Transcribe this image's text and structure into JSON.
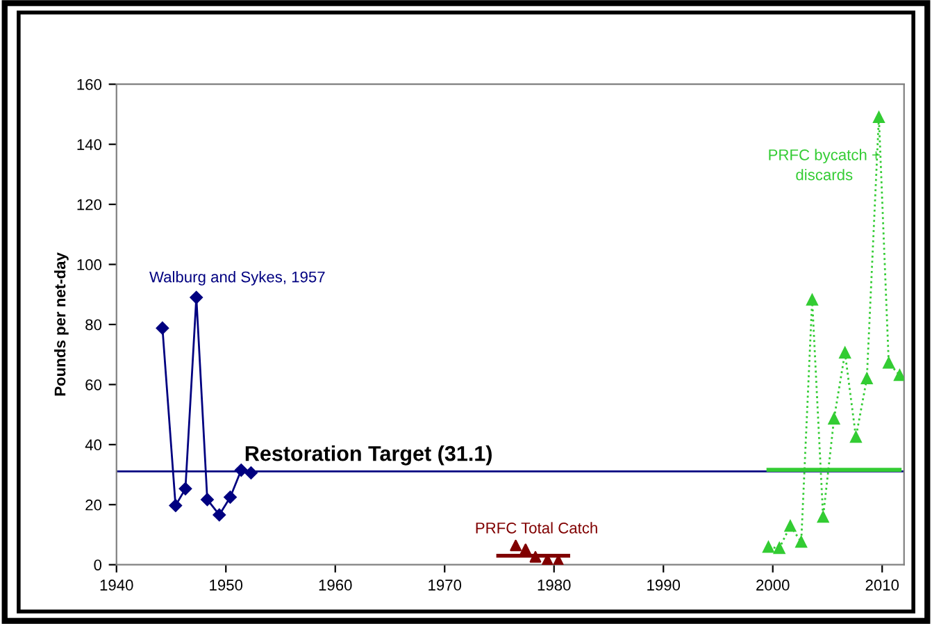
{
  "chart_data": {
    "type": "line",
    "ylabel": "Pounds per net-day",
    "xlim": [
      1940,
      2012
    ],
    "xticks": [
      1940,
      1950,
      1960,
      1970,
      1980,
      1990,
      2000,
      2010
    ],
    "ylim": [
      0,
      160
    ],
    "yticks": [
      0,
      20,
      40,
      60,
      80,
      100,
      120,
      140,
      160
    ],
    "grid": false,
    "legend": false,
    "series": [
      {
        "name": "Walburg and Sykes, 1957",
        "color": "#000080",
        "marker": "diamond",
        "line_style": "solid",
        "x": [
          1944.2,
          1945.4,
          1946.3,
          1947.3,
          1948.3,
          1949.4,
          1950.4,
          1951.4,
          1952.3
        ],
        "values": [
          78.8,
          19.7,
          25.3,
          89,
          21.7,
          16.6,
          22.5,
          31.5,
          30.6
        ]
      },
      {
        "name": "PRFC Total Catch",
        "type": "scatter",
        "color": "#800000",
        "marker": "triangle",
        "x": [
          1976.5,
          1977.4,
          1978.3,
          1979.4,
          1980.4
        ],
        "values": [
          6.4,
          5.1,
          2.6,
          1.6,
          1.3
        ]
      },
      {
        "color": "#800000",
        "marker": "none",
        "line_style": "solid",
        "x": [
          1974.9,
          1981.3
        ],
        "values": [
          3.0,
          3.0
        ]
      },
      {
        "name": "PRFC bycatch +\ndiscards",
        "color": "#33cc33",
        "marker": "triangle",
        "line_style": "dotted",
        "x": [
          1999.6,
          2000.6,
          2001.6,
          2002.6,
          2003.6,
          2004.6,
          2005.6,
          2006.6,
          2007.6,
          2008.6,
          2009.7,
          2010.6,
          2011.6
        ],
        "values": [
          5.9,
          5.5,
          12.9,
          7.6,
          88.2,
          15.9,
          48.6,
          70.6,
          42.5,
          62,
          149,
          67.2,
          63.1
        ]
      },
      {
        "color": "#33cc33",
        "marker": "none",
        "line_style": "solid",
        "x": [
          1999.6,
          2011.6
        ],
        "values": [
          31.6,
          31.6
        ]
      }
    ],
    "ref_lines": [
      {
        "axis": "y",
        "value": 31.1,
        "label": "Restoration Target (31.1)",
        "color": "#000080"
      }
    ]
  }
}
